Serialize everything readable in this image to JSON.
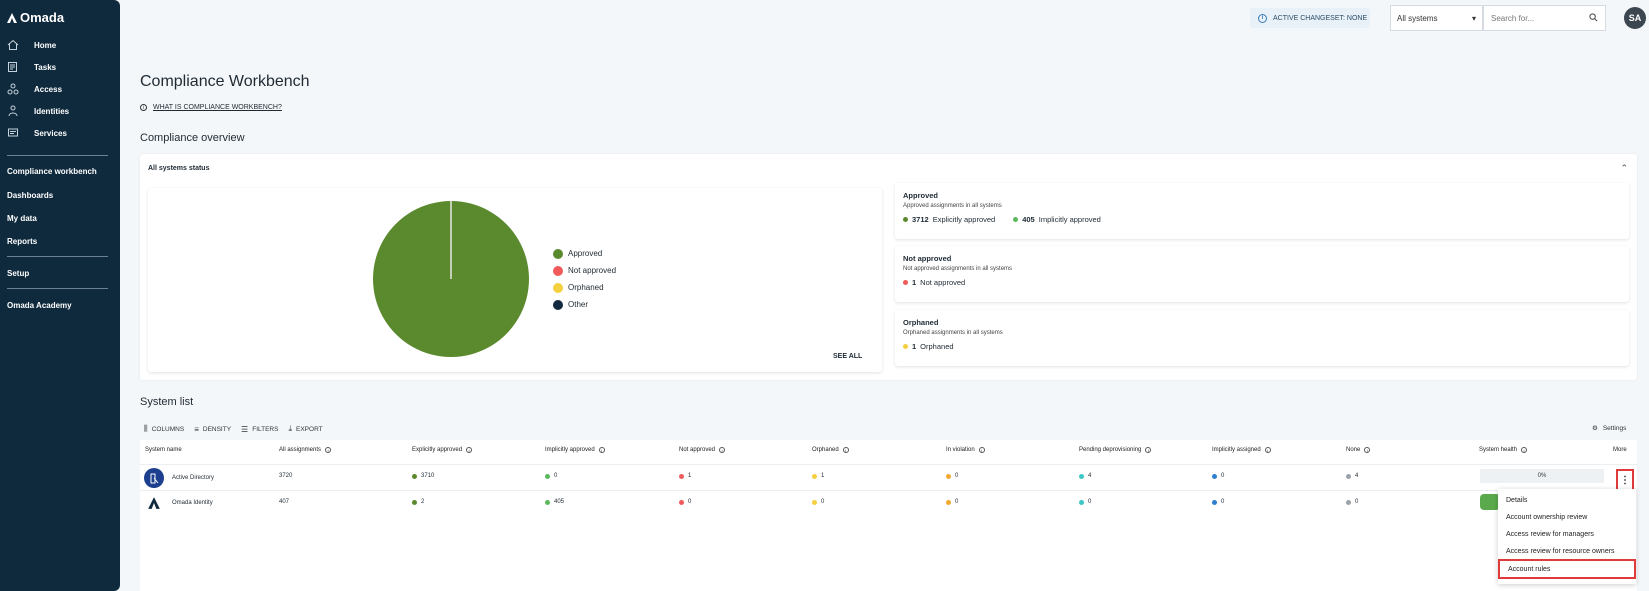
{
  "brand": "Omada",
  "sidebar": {
    "items": [
      {
        "label": "Home",
        "icon": "home-icon"
      },
      {
        "label": "Tasks",
        "icon": "tasks-icon"
      },
      {
        "label": "Access",
        "icon": "access-icon"
      },
      {
        "label": "Identities",
        "icon": "identities-icon"
      },
      {
        "label": "Services",
        "icon": "services-icon"
      }
    ],
    "group2": [
      "Compliance workbench",
      "Dashboards",
      "My data",
      "Reports"
    ],
    "setup": "Setup",
    "academy": "Omada Academy"
  },
  "topbar": {
    "changeset": "ACTIVE CHANGESET: NONE",
    "system_select": "All systems",
    "search_placeholder": "Search for...",
    "avatar": "SA"
  },
  "page": {
    "title": "Compliance Workbench",
    "help_link": "WHAT IS COMPLIANCE WORKBENCH?",
    "overview_title": "Compliance overview",
    "system_list_title": "System list"
  },
  "overview": {
    "panel_title": "All systems status",
    "see_all": "SEE ALL",
    "legend": [
      {
        "label": "Approved",
        "color": "#5b8a2e"
      },
      {
        "label": "Not approved",
        "color": "#f05a5a"
      },
      {
        "label": "Orphaned",
        "color": "#f4cf3e"
      },
      {
        "label": "Other",
        "color": "#13293d"
      }
    ],
    "cards": [
      {
        "title": "Approved",
        "subtitle": "Approved assignments in all systems",
        "values": [
          {
            "num": "3712",
            "label": "Explicitly approved",
            "color": "#5b8a2e"
          },
          {
            "num": "405",
            "label": "Implicitly approved",
            "color": "#5bb85b"
          }
        ]
      },
      {
        "title": "Not approved",
        "subtitle": "Not approved assignments in all systems",
        "values": [
          {
            "num": "1",
            "label": "Not approved",
            "color": "#f05a5a"
          }
        ]
      },
      {
        "title": "Orphaned",
        "subtitle": "Orphaned assignments in all systems",
        "values": [
          {
            "num": "1",
            "label": "Orphaned",
            "color": "#f4cf3e"
          }
        ]
      }
    ]
  },
  "chart_data": {
    "type": "pie",
    "categories": [
      "Approved",
      "Not approved",
      "Orphaned",
      "Other"
    ],
    "values": [
      4117,
      1,
      1,
      0
    ],
    "colors": [
      "#5b8a2e",
      "#f05a5a",
      "#f4cf3e",
      "#13293d"
    ],
    "legend": "right"
  },
  "toolbar": {
    "columns": "COLUMNS",
    "density": "DENSITY",
    "filters": "FILTERS",
    "export": "EXPORT",
    "settings": "Settings"
  },
  "table": {
    "headers": [
      "System name",
      "All assignments",
      "Explicitly approved",
      "Implicitly approved",
      "Not approved",
      "Orphaned",
      "In violation",
      "Pending deprovisioning",
      "Implicitly assigned",
      "None",
      "System health",
      "More"
    ],
    "rows": [
      {
        "name": "Active Directory",
        "all": "3720",
        "explicit": "3710",
        "implicit": "0",
        "not_approved": "1",
        "orphaned": "1",
        "violation": "0",
        "pending": "4",
        "impl_assigned": "0",
        "none": "4",
        "health": "0%"
      },
      {
        "name": "Omada Identity",
        "all": "407",
        "explicit": "2",
        "implicit": "405",
        "not_approved": "0",
        "orphaned": "0",
        "violation": "0",
        "pending": "0",
        "impl_assigned": "0",
        "none": "0"
      }
    ],
    "dot_colors": {
      "explicit": "#5b8a2e",
      "implicit": "#5bb85b",
      "not_approved": "#f05a5a",
      "orphaned": "#f4cf3e",
      "violation": "#f0a92e",
      "pending": "#3cc6c6",
      "impl_assigned": "#2e7fd0",
      "none": "#9aa3aa"
    }
  },
  "menu": {
    "items": [
      "Details",
      "Account ownership review",
      "Access review for managers",
      "Access review for resource owners",
      "Account rules"
    ]
  }
}
